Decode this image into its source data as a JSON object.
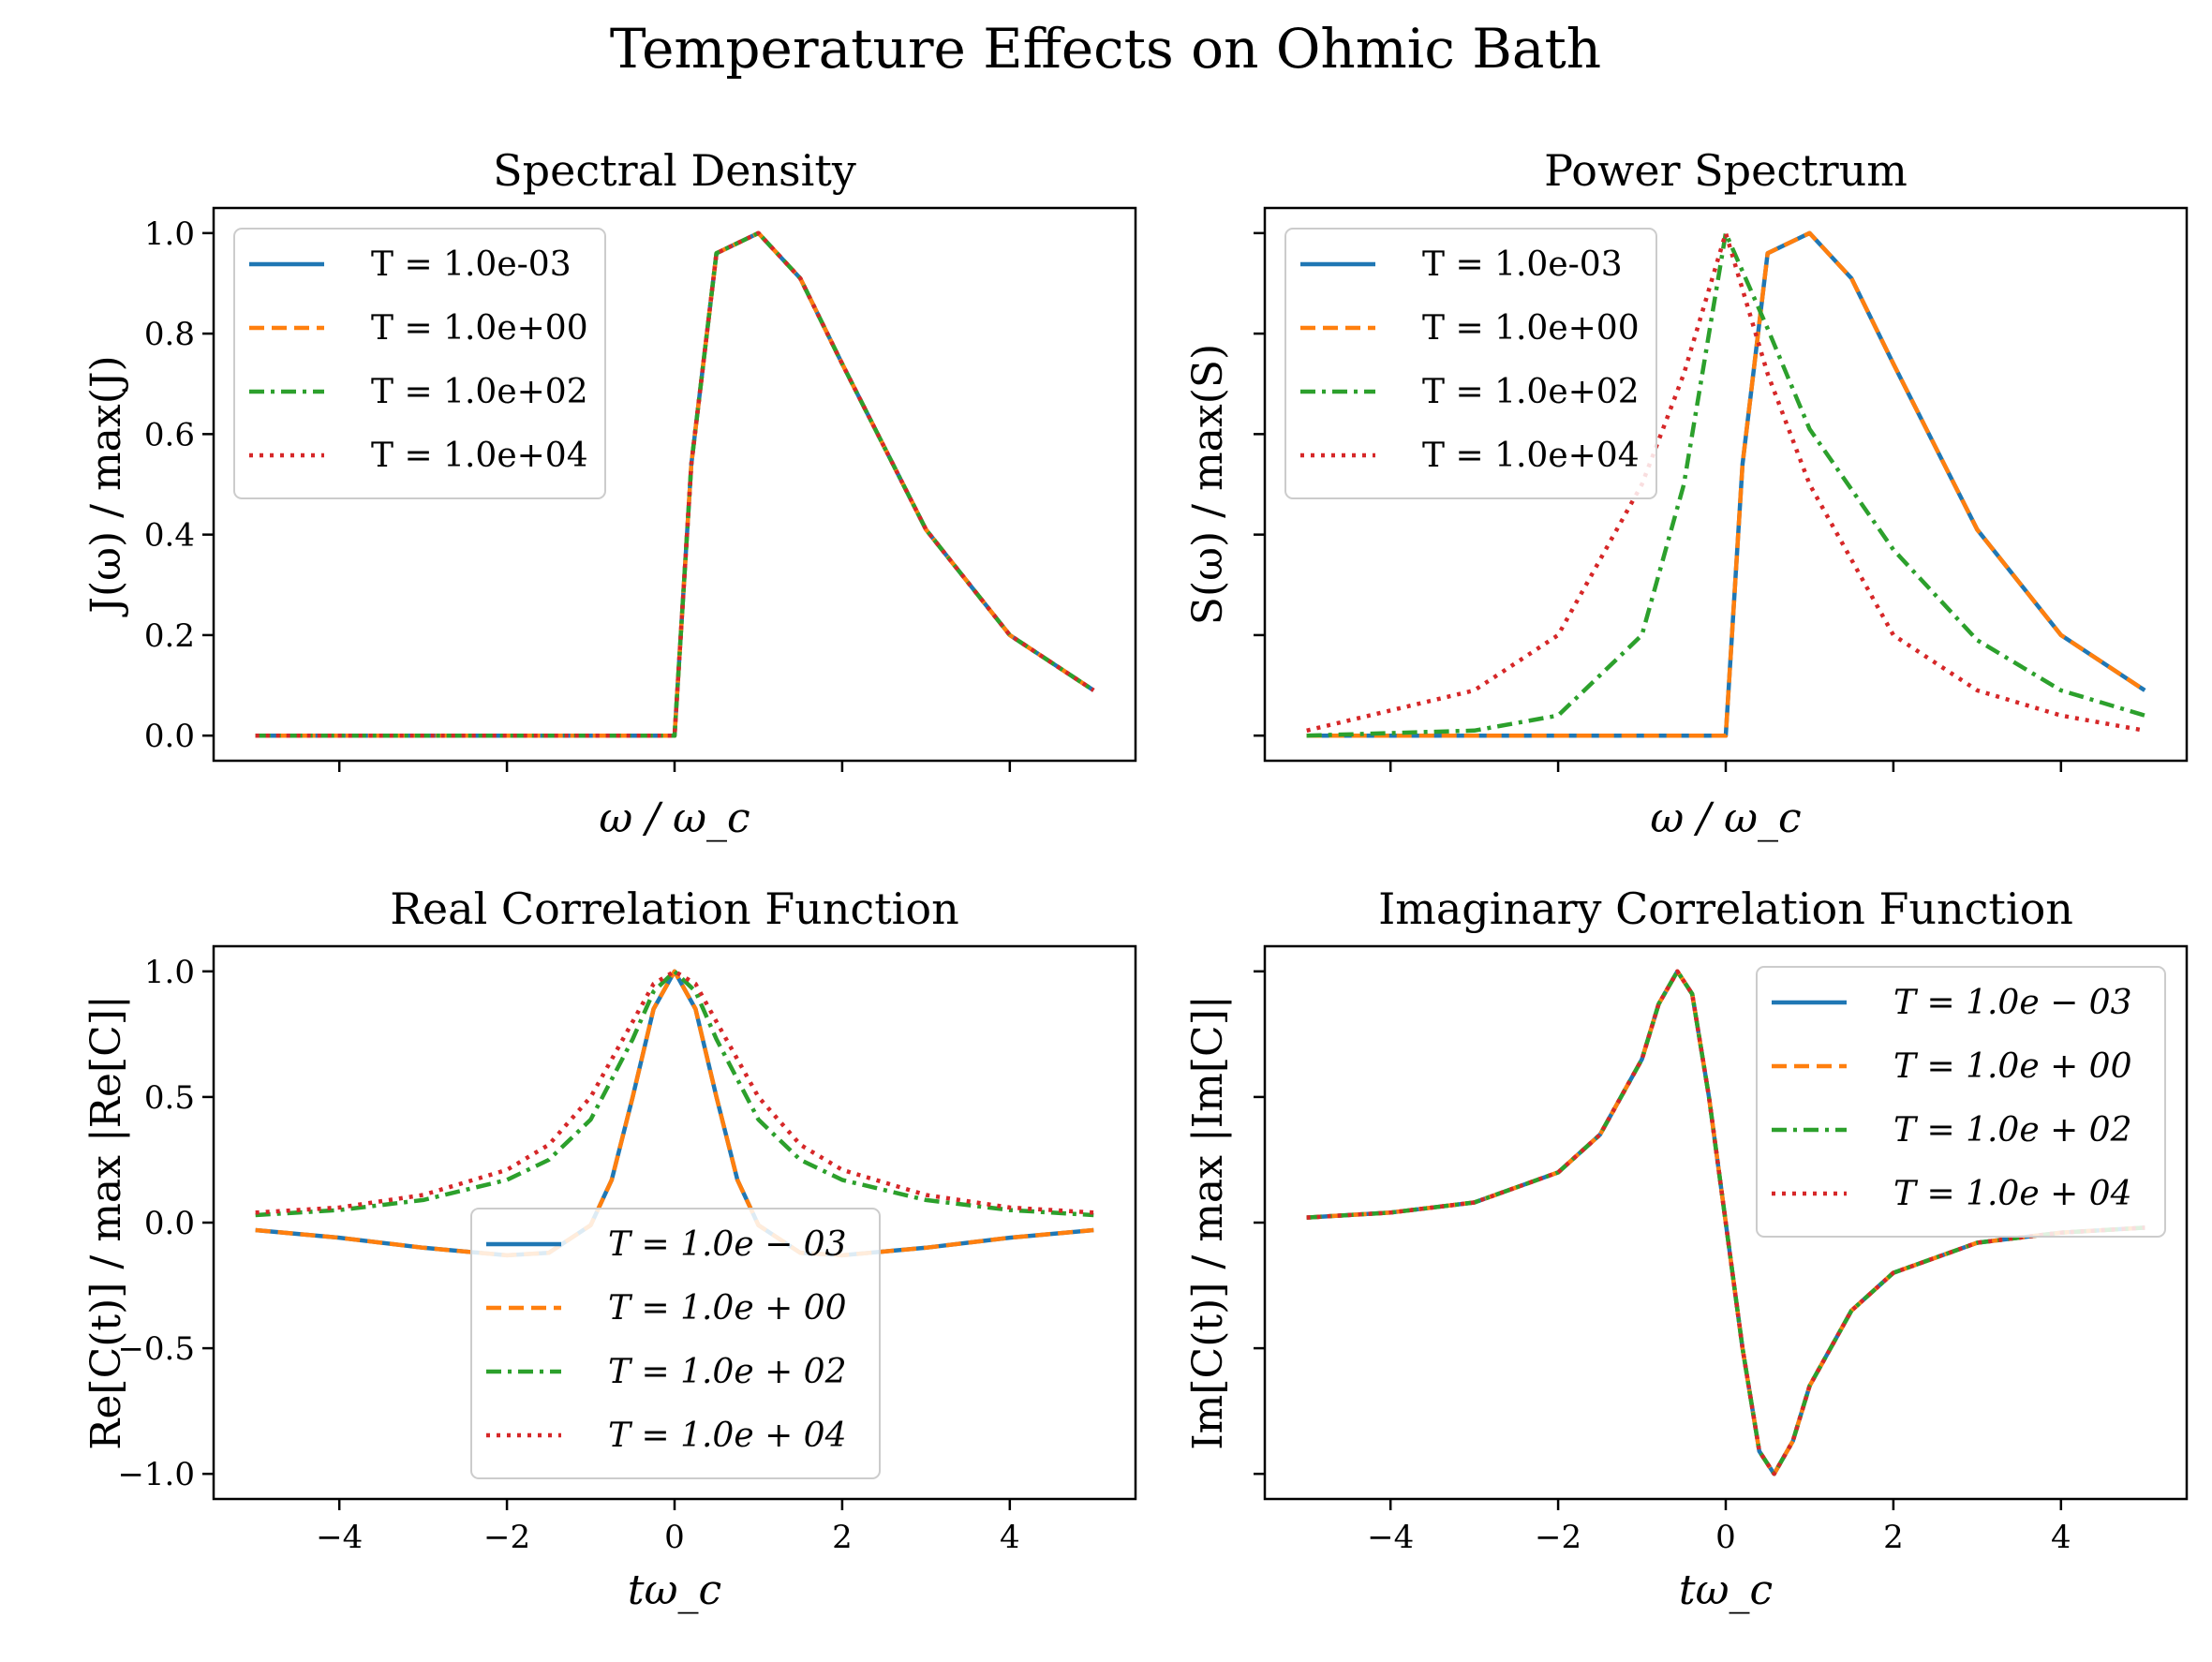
{
  "figure": {
    "title": "Temperature Effects on Ohmic Bath",
    "series_colors": [
      "#1f77b4",
      "#ff7f0e",
      "#2ca02c",
      "#d62728"
    ],
    "series_dash": [
      "solid",
      "dashed",
      "dashdot",
      "dotted"
    ]
  },
  "chart_data": [
    {
      "type": "line",
      "title": "Spectral Density",
      "xlabel": "ω / ω_c",
      "ylabel": "J(ω) / max(J)",
      "xlim": [
        -5.5,
        5.5
      ],
      "ylim": [
        -0.05,
        1.05
      ],
      "yticks": [
        "0.0",
        "0.2",
        "0.4",
        "0.6",
        "0.8",
        "1.0"
      ],
      "xticks_labels_visible": false,
      "legend_position": "top-left",
      "grid": false,
      "series": [
        {
          "name": "T = 1.0e-03",
          "x": [
            -5,
            -2,
            0,
            0.2,
            0.5,
            1.0,
            1.5,
            2.0,
            3.0,
            4.0,
            5.0
          ],
          "y": [
            0,
            0,
            0,
            0.54,
            0.96,
            1.0,
            0.91,
            0.74,
            0.41,
            0.2,
            0.09
          ]
        },
        {
          "name": "T = 1.0e+00",
          "x": [
            -5,
            -2,
            0,
            0.2,
            0.5,
            1.0,
            1.5,
            2.0,
            3.0,
            4.0,
            5.0
          ],
          "y": [
            0,
            0,
            0,
            0.54,
            0.96,
            1.0,
            0.91,
            0.74,
            0.41,
            0.2,
            0.09
          ]
        },
        {
          "name": "T = 1.0e+02",
          "x": [
            -5,
            -2,
            0,
            0.2,
            0.5,
            1.0,
            1.5,
            2.0,
            3.0,
            4.0,
            5.0
          ],
          "y": [
            0,
            0,
            0,
            0.54,
            0.96,
            1.0,
            0.91,
            0.74,
            0.41,
            0.2,
            0.09
          ]
        },
        {
          "name": "T = 1.0e+04",
          "x": [
            -5,
            -2,
            0,
            0.2,
            0.5,
            1.0,
            1.5,
            2.0,
            3.0,
            4.0,
            5.0
          ],
          "y": [
            0,
            0,
            0,
            0.54,
            0.96,
            1.0,
            0.91,
            0.74,
            0.41,
            0.2,
            0.09
          ]
        }
      ]
    },
    {
      "type": "line",
      "title": "Power Spectrum",
      "xlabel": "ω / ω_c",
      "ylabel": "S(ω) / max(S)",
      "xlim": [
        -5.5,
        5.5
      ],
      "ylim": [
        -0.05,
        1.05
      ],
      "ytick_labels_visible": false,
      "xticks_labels_visible": false,
      "legend_position": "top-left",
      "grid": false,
      "series": [
        {
          "name": "T = 1.0e-03",
          "x": [
            -5,
            -2,
            0,
            0.2,
            0.5,
            1.0,
            1.5,
            2.0,
            3.0,
            4.0,
            5.0
          ],
          "y": [
            0,
            0,
            0,
            0.54,
            0.96,
            1.0,
            0.91,
            0.74,
            0.41,
            0.2,
            0.09
          ]
        },
        {
          "name": "T = 1.0e+00",
          "x": [
            -5,
            -2,
            0,
            0.2,
            0.5,
            1.0,
            1.5,
            2.0,
            3.0,
            4.0,
            5.0
          ],
          "y": [
            0,
            0,
            0,
            0.54,
            0.96,
            1.0,
            0.91,
            0.74,
            0.41,
            0.2,
            0.09
          ]
        },
        {
          "name": "T = 1.0e+02",
          "x": [
            -5,
            -3,
            -2,
            -1,
            -0.5,
            0,
            0.5,
            1,
            2,
            3,
            4,
            5
          ],
          "y": [
            0,
            0.01,
            0.04,
            0.2,
            0.5,
            1.0,
            0.81,
            0.61,
            0.37,
            0.19,
            0.09,
            0.04
          ]
        },
        {
          "name": "T = 1.0e+04",
          "x": [
            -5,
            -3,
            -2,
            -1,
            -0.5,
            0,
            0.5,
            1,
            2,
            3,
            4,
            5
          ],
          "y": [
            0.01,
            0.09,
            0.2,
            0.5,
            0.72,
            1.0,
            0.72,
            0.5,
            0.2,
            0.09,
            0.04,
            0.01
          ]
        }
      ]
    },
    {
      "type": "line",
      "title": "Real Correlation Function",
      "xlabel": "tω_c",
      "ylabel": "Re[C(t)] / max |Re[C]|",
      "xlim": [
        -5.5,
        5.5
      ],
      "ylim": [
        -1.1,
        1.1
      ],
      "xticks": [
        "−4",
        "−2",
        "0",
        "2",
        "4"
      ],
      "yticks": [
        "−1.0",
        "−0.5",
        "0.0",
        "0.5",
        "1.0"
      ],
      "legend_position": "lower-center",
      "grid": false,
      "series": [
        {
          "name": "T = 1.0e − 03",
          "x": [
            -5,
            -4,
            -3,
            -2,
            -1.5,
            -1,
            -0.75,
            -0.5,
            -0.25,
            0,
            0.25,
            0.5,
            0.75,
            1,
            1.5,
            2,
            3,
            4,
            5
          ],
          "y": [
            -0.03,
            -0.06,
            -0.1,
            -0.13,
            -0.12,
            -0.01,
            0.17,
            0.5,
            0.85,
            1.0,
            0.85,
            0.5,
            0.17,
            -0.01,
            -0.12,
            -0.13,
            -0.1,
            -0.06,
            -0.03
          ]
        },
        {
          "name": "T = 1.0e + 00",
          "x": [
            -5,
            -4,
            -3,
            -2,
            -1.5,
            -1,
            -0.75,
            -0.5,
            -0.25,
            0,
            0.25,
            0.5,
            0.75,
            1,
            1.5,
            2,
            3,
            4,
            5
          ],
          "y": [
            -0.03,
            -0.06,
            -0.1,
            -0.13,
            -0.12,
            -0.01,
            0.17,
            0.5,
            0.85,
            1.0,
            0.85,
            0.5,
            0.17,
            -0.01,
            -0.12,
            -0.13,
            -0.1,
            -0.06,
            -0.03
          ]
        },
        {
          "name": "T = 1.0e + 02",
          "x": [
            -5,
            -4,
            -3,
            -2,
            -1.5,
            -1,
            -0.5,
            -0.25,
            0,
            0.25,
            0.5,
            1,
            1.5,
            2,
            3,
            4,
            5
          ],
          "y": [
            0.03,
            0.05,
            0.09,
            0.17,
            0.25,
            0.41,
            0.73,
            0.92,
            1.0,
            0.92,
            0.73,
            0.41,
            0.25,
            0.17,
            0.09,
            0.05,
            0.03
          ]
        },
        {
          "name": "T = 1.0e + 04",
          "x": [
            -5,
            -4,
            -3,
            -2,
            -1.5,
            -1,
            -0.5,
            -0.25,
            0,
            0.25,
            0.5,
            1,
            1.5,
            2,
            3,
            4,
            5
          ],
          "y": [
            0.04,
            0.06,
            0.11,
            0.21,
            0.31,
            0.5,
            0.8,
            0.95,
            1.0,
            0.95,
            0.8,
            0.5,
            0.31,
            0.21,
            0.11,
            0.06,
            0.04
          ]
        }
      ]
    },
    {
      "type": "line",
      "title": "Imaginary Correlation Function",
      "xlabel": "tω_c",
      "ylabel": "Im[C(t)] / max |Im[C]|",
      "xlim": [
        -5.5,
        5.5
      ],
      "ylim": [
        -1.1,
        1.1
      ],
      "xticks": [
        "−4",
        "−2",
        "0",
        "2",
        "4"
      ],
      "ytick_labels_visible": false,
      "legend_position": "top-right",
      "grid": false,
      "series": [
        {
          "name": "T = 1.0e − 03",
          "x": [
            -5,
            -4,
            -3,
            -2,
            -1.5,
            -1,
            -0.8,
            -0.577,
            -0.4,
            -0.2,
            0,
            0.2,
            0.4,
            0.577,
            0.8,
            1,
            1.5,
            2,
            3,
            4,
            5
          ],
          "y": [
            0.02,
            0.04,
            0.08,
            0.2,
            0.35,
            0.65,
            0.87,
            1.0,
            0.91,
            0.5,
            0,
            -0.5,
            -0.91,
            -1.0,
            -0.87,
            -0.65,
            -0.35,
            -0.2,
            -0.08,
            -0.04,
            -0.02
          ]
        },
        {
          "name": "T = 1.0e + 00",
          "x": [
            -5,
            -4,
            -3,
            -2,
            -1.5,
            -1,
            -0.8,
            -0.577,
            -0.4,
            -0.2,
            0,
            0.2,
            0.4,
            0.577,
            0.8,
            1,
            1.5,
            2,
            3,
            4,
            5
          ],
          "y": [
            0.02,
            0.04,
            0.08,
            0.2,
            0.35,
            0.65,
            0.87,
            1.0,
            0.91,
            0.5,
            0,
            -0.5,
            -0.91,
            -1.0,
            -0.87,
            -0.65,
            -0.35,
            -0.2,
            -0.08,
            -0.04,
            -0.02
          ]
        },
        {
          "name": "T = 1.0e + 02",
          "x": [
            -5,
            -4,
            -3,
            -2,
            -1.5,
            -1,
            -0.8,
            -0.577,
            -0.4,
            -0.2,
            0,
            0.2,
            0.4,
            0.577,
            0.8,
            1,
            1.5,
            2,
            3,
            4,
            5
          ],
          "y": [
            0.02,
            0.04,
            0.08,
            0.2,
            0.35,
            0.65,
            0.87,
            1.0,
            0.91,
            0.5,
            0,
            -0.5,
            -0.91,
            -1.0,
            -0.87,
            -0.65,
            -0.35,
            -0.2,
            -0.08,
            -0.04,
            -0.02
          ]
        },
        {
          "name": "T = 1.0e + 04",
          "x": [
            -5,
            -4,
            -3,
            -2,
            -1.5,
            -1,
            -0.8,
            -0.577,
            -0.4,
            -0.2,
            0,
            0.2,
            0.4,
            0.577,
            0.8,
            1,
            1.5,
            2,
            3,
            4,
            5
          ],
          "y": [
            0.02,
            0.04,
            0.08,
            0.2,
            0.35,
            0.65,
            0.87,
            1.0,
            0.91,
            0.5,
            0,
            -0.5,
            -0.91,
            -1.0,
            -0.87,
            -0.65,
            -0.35,
            -0.2,
            -0.08,
            -0.04,
            -0.02
          ]
        }
      ]
    }
  ]
}
